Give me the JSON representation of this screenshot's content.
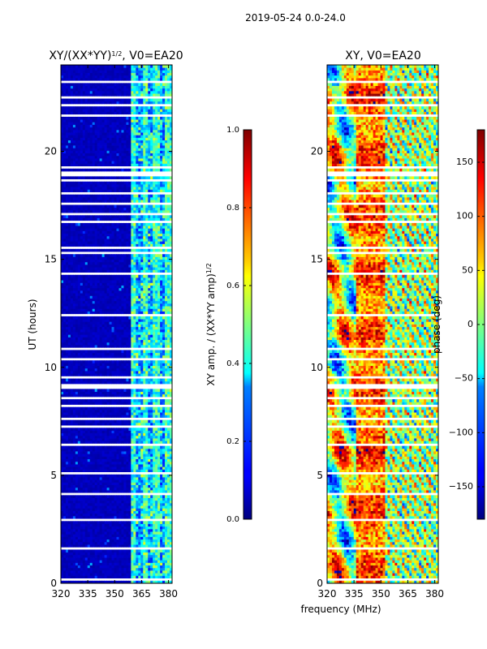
{
  "suptitle": "2019-05-24 0.0-24.0",
  "shared_xlabel": "frequency (MHz)",
  "chart_data": [
    {
      "type": "heatmap",
      "title_main": "XY/(XX*YY)",
      "title_exp": "1/2",
      "title_tail": ", V0=EA20",
      "xlabel": "",
      "ylabel": "UT (hours)",
      "xlim": [
        320,
        382
      ],
      "ylim": [
        0,
        24
      ],
      "xticks": [
        320,
        335,
        350,
        365,
        380
      ],
      "yticks": [
        0,
        5,
        10,
        15,
        20
      ],
      "colorscale": "jet",
      "colorbar": {
        "label_main": "XY amp. / (XX*YY amp)",
        "label_exp": "1/2",
        "range": [
          0.0,
          1.0
        ],
        "ticks": [
          "0.0",
          "0.2",
          "0.4",
          "0.6",
          "0.8",
          "1.0"
        ]
      },
      "notes": "Mostly low amplitude (~0.05) below 359 MHz; striped mid-level values (0.2-0.6) in 359-380 MHz band; white gaps indicate flagged times."
    },
    {
      "type": "heatmap",
      "title": "XY, V0=EA20",
      "xlabel": "frequency (MHz)",
      "ylabel": "",
      "xlim": [
        320,
        382
      ],
      "ylim": [
        0,
        24
      ],
      "xticks": [
        320,
        335,
        350,
        365,
        380
      ],
      "yticks": [
        0,
        5,
        10,
        15,
        20
      ],
      "colorscale": "jet",
      "colorbar": {
        "label": "phase (deg)",
        "range": [
          -180,
          180
        ],
        "ticks": [
          "−150",
          "−100",
          "−50",
          "0",
          "50",
          "100",
          "150"
        ]
      },
      "notes": "Phase varies strongly across frequency and time; white gaps indicate flagged times."
    }
  ],
  "gaps_hours": [
    [
      23.6,
      23.66
    ],
    [
      23.2,
      23.26
    ],
    [
      22.9,
      22.95
    ],
    [
      22.5,
      22.56
    ],
    [
      22.1,
      22.16
    ],
    [
      21.65,
      21.72
    ],
    [
      20.95,
      21.0
    ],
    [
      20.6,
      20.64
    ],
    [
      20.15,
      20.2
    ],
    [
      19.2,
      19.28
    ],
    [
      18.9,
      19.02
    ],
    [
      18.6,
      18.73
    ],
    [
      17.95,
      18.1
    ],
    [
      17.5,
      17.6
    ],
    [
      17.1,
      17.2
    ],
    [
      16.7,
      16.82
    ],
    [
      15.9,
      15.98
    ],
    [
      15.5,
      15.6
    ],
    [
      15.25,
      15.3
    ],
    [
      14.3,
      14.42
    ],
    [
      13.9,
      13.95
    ],
    [
      13.2,
      13.25
    ],
    [
      12.4,
      12.45
    ],
    [
      10.85,
      10.9
    ],
    [
      10.35,
      10.42
    ],
    [
      10.05,
      10.1
    ],
    [
      9.5,
      9.56
    ],
    [
      9.05,
      9.2
    ],
    [
      8.55,
      8.6
    ],
    [
      8.2,
      8.25
    ],
    [
      7.6,
      7.68
    ],
    [
      7.2,
      7.3
    ],
    [
      6.9,
      6.95
    ],
    [
      6.4,
      6.45
    ],
    [
      6.0,
      6.05
    ],
    [
      5.6,
      5.66
    ],
    [
      5.1,
      5.15
    ],
    [
      4.75,
      4.8
    ],
    [
      4.1,
      4.15
    ],
    [
      3.55,
      3.62
    ],
    [
      3.35,
      3.4
    ],
    [
      2.9,
      2.95
    ],
    [
      2.0,
      2.08
    ],
    [
      1.6,
      1.64
    ],
    [
      0.6,
      0.65
    ],
    [
      0.15,
      0.2
    ]
  ]
}
